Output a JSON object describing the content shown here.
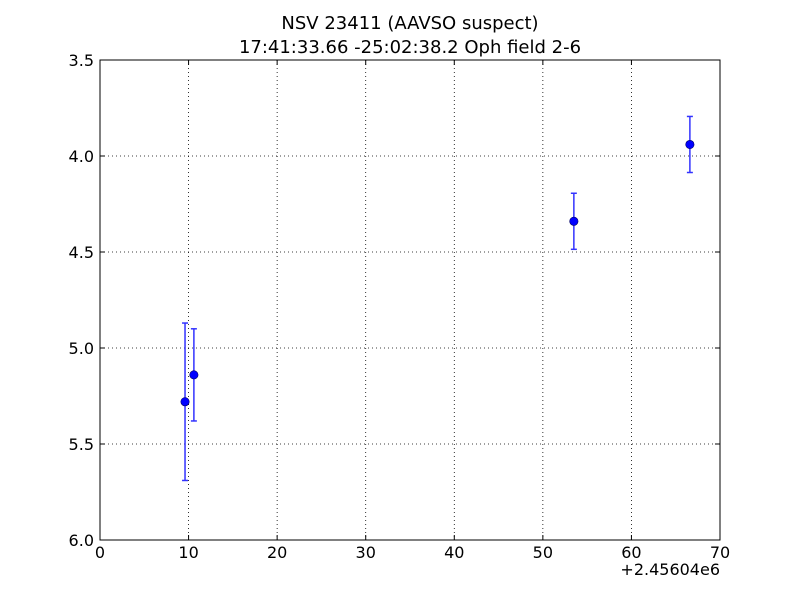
{
  "chart_data": {
    "type": "scatter",
    "title": "NSV 23411 (AAVSO suspect)",
    "subtitle": "17:41:33.66 -25:02:38.2 Oph field 2-6",
    "xlabel": "",
    "ylabel": "",
    "x_offset_label": "+2.45604e6",
    "xlim": [
      0,
      70
    ],
    "ylim": [
      6.0,
      3.5
    ],
    "y_inverted": true,
    "grid": true,
    "x_ticks": [
      0,
      10,
      20,
      30,
      40,
      50,
      60,
      70
    ],
    "x_tick_labels": [
      "0",
      "10",
      "20",
      "30",
      "40",
      "50",
      "60",
      "70"
    ],
    "y_ticks": [
      3.5,
      4.0,
      4.5,
      5.0,
      5.5,
      6.0
    ],
    "y_tick_labels": [
      "3.5",
      "4.0",
      "4.5",
      "5.0",
      "5.5",
      "6.0"
    ],
    "marker_color": "#0000ff",
    "errorbar_color": "#3333ff",
    "points": [
      {
        "x": 9.6,
        "y": 5.28,
        "err": 0.41
      },
      {
        "x": 10.6,
        "y": 5.14,
        "err": 0.24
      },
      {
        "x": 53.5,
        "y": 4.34,
        "err": 0.146
      },
      {
        "x": 66.6,
        "y": 3.94,
        "err": 0.146
      }
    ]
  }
}
